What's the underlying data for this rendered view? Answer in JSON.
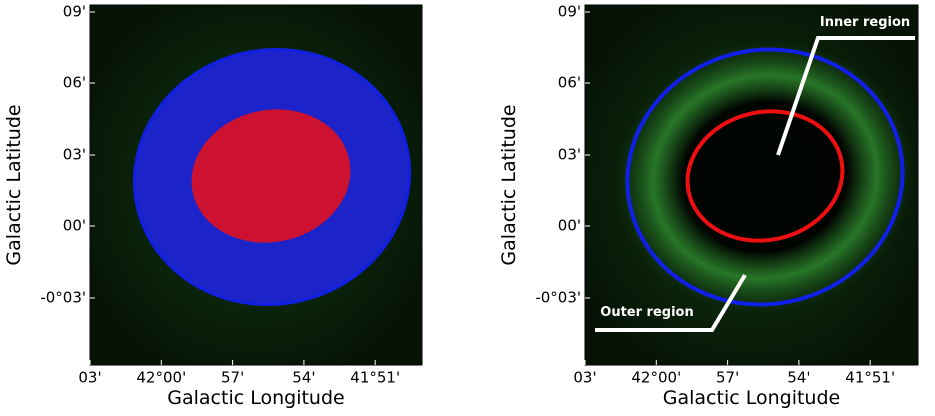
{
  "panels": [
    {
      "x_axis_label": "Galactic Longitude",
      "y_axis_label": "Galactic Latitude",
      "x_tick_labels": [
        "03'",
        "42°00'",
        "57'",
        "54'",
        "41°51'"
      ],
      "y_tick_labels": [
        "09'",
        "06'",
        "03'",
        "00'",
        "-0°03'"
      ]
    },
    {
      "x_axis_label": "Galactic Longitude",
      "y_axis_label": "Galactic Latitude",
      "x_tick_labels": [
        "03'",
        "42°00'",
        "57'",
        "54'",
        "41°51'"
      ],
      "y_tick_labels": [
        "09'",
        "06'",
        "03'",
        "00'",
        "-0°03'"
      ],
      "annotations": [
        "Inner region",
        "Outer region"
      ]
    }
  ]
}
